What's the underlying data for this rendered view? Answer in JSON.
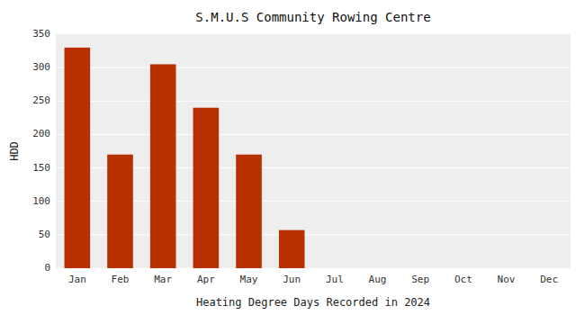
{
  "chart_data": {
    "type": "bar",
    "title": "S.M.U.S Community Rowing Centre",
    "xlabel": "Heating Degree Days Recorded in 2024",
    "ylabel": "HDD",
    "categories": [
      "Jan",
      "Feb",
      "Mar",
      "Apr",
      "May",
      "Jun",
      "Jul",
      "Aug",
      "Sep",
      "Oct",
      "Nov",
      "Dec"
    ],
    "values": [
      330,
      170,
      305,
      240,
      170,
      57,
      0,
      0,
      0,
      0,
      0,
      0
    ],
    "color": "#b83000",
    "ylim": [
      0,
      350
    ],
    "yticks": [
      0,
      50,
      100,
      150,
      200,
      250,
      300,
      350
    ],
    "grid": true
  }
}
